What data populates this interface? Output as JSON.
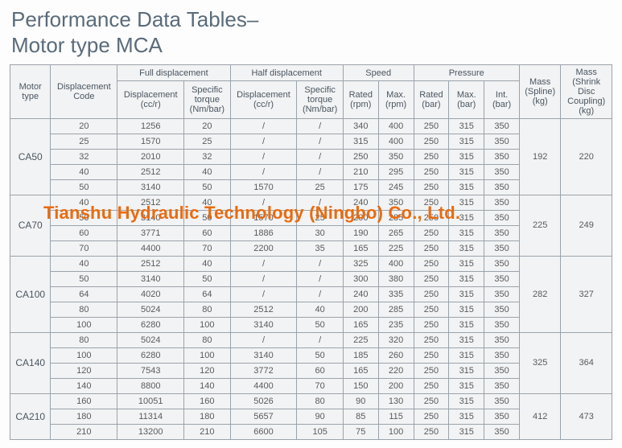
{
  "title_line1": "Performance Data Tables–",
  "title_line2": "Motor type MCA",
  "watermark": "Tianshu Hydraulic Technology (Ningbo) Co., Ltd.",
  "headers": {
    "motor_type": "Motor\ntype",
    "disp_code": "Displacement\nCode",
    "full_disp": "Full displacement",
    "half_disp": "Half displacement",
    "speed": "Speed",
    "pressure": "Pressure",
    "mass_spline": "Mass\n(Spline)\n(kg)",
    "mass_shrink": "Mass\n(Shrink Disc\nCoupling)\n(kg)",
    "disp_ccr": "Displacement\n(cc/r)",
    "spec_torque": "Specific\ntorque\n(Nm/bar)",
    "rated_rpm": "Rated\n(rpm)",
    "max_rpm": "Max.\n(rpm)",
    "rated_bar": "Rated\n(bar)",
    "max_bar": "Max.\n(bar)",
    "int_bar": "Int.\n(bar)"
  },
  "groups": [
    {
      "motor_type": "CA50",
      "mass_spline": "192",
      "mass_shrink": "220",
      "rows": [
        {
          "code": "20",
          "fd": "1256",
          "ft": "20",
          "hd": "/",
          "ht": "/",
          "rr": "340",
          "mr": "400",
          "rb": "250",
          "mb": "315",
          "ib": "350"
        },
        {
          "code": "25",
          "fd": "1570",
          "ft": "25",
          "hd": "/",
          "ht": "/",
          "rr": "315",
          "mr": "400",
          "rb": "250",
          "mb": "315",
          "ib": "350"
        },
        {
          "code": "32",
          "fd": "2010",
          "ft": "32",
          "hd": "/",
          "ht": "/",
          "rr": "250",
          "mr": "350",
          "rb": "250",
          "mb": "315",
          "ib": "350"
        },
        {
          "code": "40",
          "fd": "2512",
          "ft": "40",
          "hd": "/",
          "ht": "/",
          "rr": "210",
          "mr": "295",
          "rb": "250",
          "mb": "315",
          "ib": "350"
        },
        {
          "code": "50",
          "fd": "3140",
          "ft": "50",
          "hd": "1570",
          "ht": "25",
          "rr": "175",
          "mr": "245",
          "rb": "250",
          "mb": "315",
          "ib": "350"
        }
      ]
    },
    {
      "motor_type": "CA70",
      "mass_spline": "225",
      "mass_shrink": "249",
      "rows": [
        {
          "code": "40",
          "fd": "2512",
          "ft": "40",
          "hd": "/",
          "ht": "/",
          "rr": "240",
          "mr": "350",
          "rb": "250",
          "mb": "315",
          "ib": "350"
        },
        {
          "code": "50",
          "fd": "3140",
          "ft": "50",
          "hd": "1570",
          "ht": "25",
          "rr": "200",
          "mr": "285",
          "rb": "250",
          "mb": "315",
          "ib": "350"
        },
        {
          "code": "60",
          "fd": "3771",
          "ft": "60",
          "hd": "1886",
          "ht": "30",
          "rr": "190",
          "mr": "265",
          "rb": "250",
          "mb": "315",
          "ib": "350"
        },
        {
          "code": "70",
          "fd": "4400",
          "ft": "70",
          "hd": "2200",
          "ht": "35",
          "rr": "165",
          "mr": "225",
          "rb": "250",
          "mb": "315",
          "ib": "350"
        }
      ]
    },
    {
      "motor_type": "CA100",
      "mass_spline": "282",
      "mass_shrink": "327",
      "rows": [
        {
          "code": "40",
          "fd": "2512",
          "ft": "40",
          "hd": "/",
          "ht": "/",
          "rr": "325",
          "mr": "400",
          "rb": "250",
          "mb": "315",
          "ib": "350"
        },
        {
          "code": "50",
          "fd": "3140",
          "ft": "50",
          "hd": "/",
          "ht": "/",
          "rr": "300",
          "mr": "380",
          "rb": "250",
          "mb": "315",
          "ib": "350"
        },
        {
          "code": "64",
          "fd": "4020",
          "ft": "64",
          "hd": "/",
          "ht": "/",
          "rr": "240",
          "mr": "335",
          "rb": "250",
          "mb": "315",
          "ib": "350"
        },
        {
          "code": "80",
          "fd": "5024",
          "ft": "80",
          "hd": "2512",
          "ht": "40",
          "rr": "200",
          "mr": "285",
          "rb": "250",
          "mb": "315",
          "ib": "350"
        },
        {
          "code": "100",
          "fd": "6280",
          "ft": "100",
          "hd": "3140",
          "ht": "50",
          "rr": "165",
          "mr": "235",
          "rb": "250",
          "mb": "315",
          "ib": "350"
        }
      ]
    },
    {
      "motor_type": "CA140",
      "mass_spline": "325",
      "mass_shrink": "364",
      "rows": [
        {
          "code": "80",
          "fd": "5024",
          "ft": "80",
          "hd": "/",
          "ht": "/",
          "rr": "225",
          "mr": "320",
          "rb": "250",
          "mb": "315",
          "ib": "350"
        },
        {
          "code": "100",
          "fd": "6280",
          "ft": "100",
          "hd": "3140",
          "ht": "50",
          "rr": "185",
          "mr": "260",
          "rb": "250",
          "mb": "315",
          "ib": "350"
        },
        {
          "code": "120",
          "fd": "7543",
          "ft": "120",
          "hd": "3772",
          "ht": "60",
          "rr": "165",
          "mr": "220",
          "rb": "250",
          "mb": "315",
          "ib": "350"
        },
        {
          "code": "140",
          "fd": "8800",
          "ft": "140",
          "hd": "4400",
          "ht": "70",
          "rr": "150",
          "mr": "200",
          "rb": "250",
          "mb": "315",
          "ib": "350"
        }
      ]
    },
    {
      "motor_type": "CA210",
      "mass_spline": "412",
      "mass_shrink": "473",
      "rows": [
        {
          "code": "160",
          "fd": "10051",
          "ft": "160",
          "hd": "5026",
          "ht": "80",
          "rr": "90",
          "mr": "130",
          "rb": "250",
          "mb": "315",
          "ib": "350"
        },
        {
          "code": "180",
          "fd": "11314",
          "ft": "180",
          "hd": "5657",
          "ht": "90",
          "rr": "85",
          "mr": "115",
          "rb": "250",
          "mb": "315",
          "ib": "350"
        },
        {
          "code": "210",
          "fd": "13200",
          "ft": "210",
          "hd": "6600",
          "ht": "105",
          "rr": "75",
          "mr": "100",
          "rb": "250",
          "mb": "315",
          "ib": "350"
        }
      ]
    }
  ],
  "col_widths": [
    "46",
    "70",
    "72",
    "52",
    "72",
    "52",
    "40",
    "40",
    "40",
    "40",
    "40",
    "46",
    "58"
  ],
  "style": {
    "border_color": "#9aa3ab",
    "cell_bg": "#f2f3f4",
    "text_color": "#5a5a5a",
    "title_color": "#5a6b7a",
    "watermark_color": "#e96b10"
  }
}
